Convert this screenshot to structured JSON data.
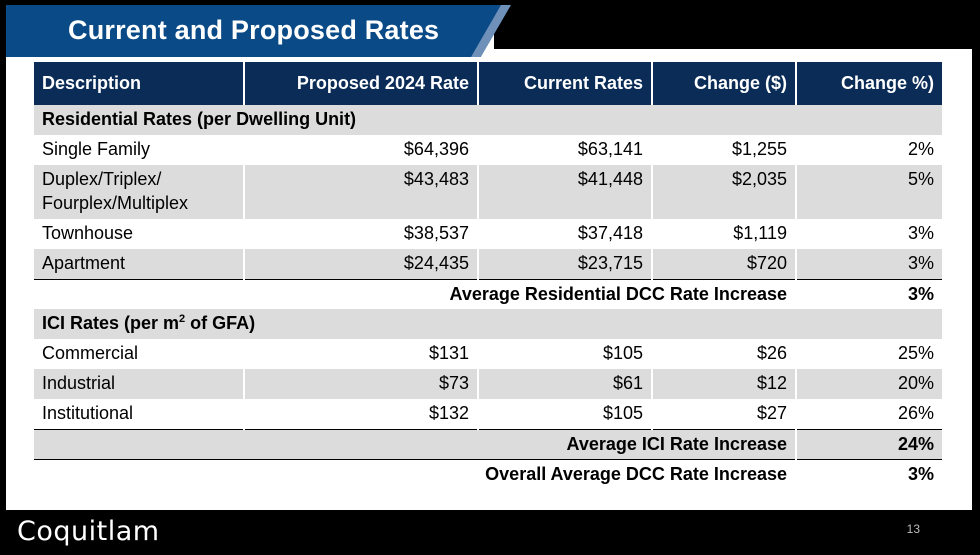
{
  "slide": {
    "title": "Current and Proposed Rates",
    "page_number": "13",
    "logo_text": "Coquitlam"
  },
  "table": {
    "headers": [
      "Description",
      "Proposed 2024 Rate",
      "Current Rates",
      "Change ($)",
      "Change %)"
    ],
    "residential_section": "Residential Rates (per Dwelling Unit)",
    "residential_rows": [
      {
        "description": "Single Family",
        "proposed": "$64,396",
        "current": "$63,141",
        "change_dollar": "$1,255",
        "change_pct": "2%"
      },
      {
        "description": "Duplex/Triplex/",
        "description_line2": "Fourplex/Multiplex",
        "proposed": "$43,483",
        "current": "$41,448",
        "change_dollar": "$2,035",
        "change_pct": "5%"
      },
      {
        "description": "Townhouse",
        "proposed": "$38,537",
        "current": "$37,418",
        "change_dollar": "$1,119",
        "change_pct": "3%"
      },
      {
        "description": "Apartment",
        "proposed": "$24,435",
        "current": "$23,715",
        "change_dollar": "$720",
        "change_pct": "3%"
      }
    ],
    "residential_summary": {
      "label": "Average Residential DCC Rate Increase",
      "value": "3%"
    },
    "ici_section": {
      "prefix": "ICI Rates (per m",
      "sup": "2",
      "suffix": " of GFA)"
    },
    "ici_rows": [
      {
        "description": "Commercial",
        "proposed": "$131",
        "current": "$105",
        "change_dollar": "$26",
        "change_pct": "25%"
      },
      {
        "description": "Industrial",
        "proposed": "$73",
        "current": "$61",
        "change_dollar": "$12",
        "change_pct": "20%"
      },
      {
        "description": "Institutional",
        "proposed": "$132",
        "current": "$105",
        "change_dollar": "$27",
        "change_pct": "26%"
      }
    ],
    "ici_summary": {
      "label": "Average ICI Rate Increase",
      "value": "24%"
    },
    "overall_summary": {
      "label": "Overall Average DCC Rate Increase",
      "value": "3%"
    }
  }
}
